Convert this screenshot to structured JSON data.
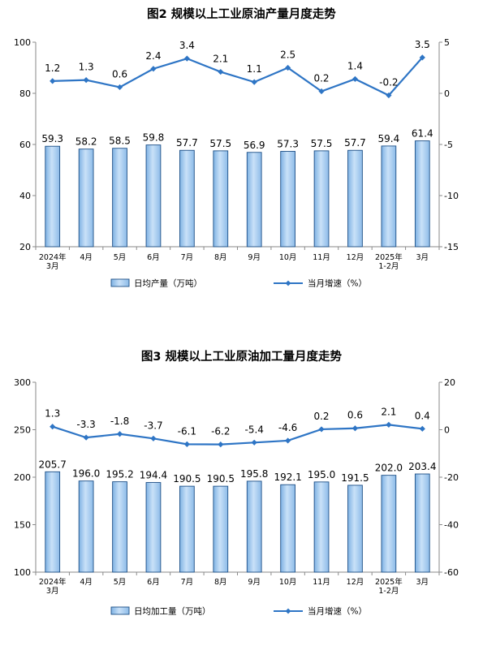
{
  "chart_data": [
    {
      "type": "bar+line",
      "title": "图2  规模以上工业原油产量月度走势",
      "categories": [
        "2024年\n3月",
        "4月",
        "5月",
        "6月",
        "7月",
        "8月",
        "9月",
        "10月",
        "11月",
        "12月",
        "2025年\n1-2月",
        "3月"
      ],
      "series": [
        {
          "name": "日均产量（万吨）",
          "type": "bar",
          "axis": "left",
          "values": [
            59.3,
            58.2,
            58.5,
            59.8,
            57.7,
            57.5,
            56.9,
            57.3,
            57.5,
            57.7,
            59.4,
            61.4
          ],
          "labels": [
            "59.3",
            "58.2",
            "58.5",
            "59.8",
            "57.7",
            "57.5",
            "56.9",
            "57.3",
            "57.5",
            "57.7",
            "59.4",
            "61.4"
          ]
        },
        {
          "name": "当月增速（%）",
          "type": "line",
          "axis": "right",
          "values": [
            1.2,
            1.3,
            0.6,
            2.4,
            3.4,
            2.1,
            1.1,
            2.5,
            0.2,
            1.4,
            -0.2,
            3.5
          ],
          "labels": [
            "1.2",
            "1.3",
            "0.6",
            "2.4",
            "3.4",
            "2.1",
            "1.1",
            "2.5",
            "0.2",
            "1.4",
            "-0.2",
            "3.5"
          ]
        }
      ],
      "y_left": {
        "min": 20,
        "max": 100,
        "ticks": [
          20,
          40,
          60,
          80,
          100
        ],
        "tick_labels": [
          "20",
          "40",
          "60",
          "80",
          "100"
        ]
      },
      "y_right": {
        "min": -15,
        "max": 5,
        "ticks": [
          -15,
          -10,
          -5,
          0,
          5
        ],
        "tick_labels": [
          "-15",
          "-10",
          "-5",
          "0",
          "5"
        ]
      },
      "grid": false,
      "legend": "bottom"
    },
    {
      "type": "bar+line",
      "title": "图3  规模以上工业原油加工量月度走势",
      "categories": [
        "2024年\n3月",
        "4月",
        "5月",
        "6月",
        "7月",
        "8月",
        "9月",
        "10月",
        "11月",
        "12月",
        "2025年\n1-2月",
        "3月"
      ],
      "series": [
        {
          "name": "日均加工量（万吨）",
          "type": "bar",
          "axis": "left",
          "values": [
            205.7,
            196.0,
            195.2,
            194.4,
            190.5,
            190.5,
            195.8,
            192.1,
            195.0,
            191.5,
            202.0,
            203.4
          ],
          "labels": [
            "205.7",
            "196.0",
            "195.2",
            "194.4",
            "190.5",
            "190.5",
            "195.8",
            "192.1",
            "195.0",
            "191.5",
            "202.0",
            "203.4"
          ]
        },
        {
          "name": "当月增速（%）",
          "type": "line",
          "axis": "right",
          "values": [
            1.3,
            -3.3,
            -1.8,
            -3.7,
            -6.1,
            -6.2,
            -5.4,
            -4.6,
            0.2,
            0.6,
            2.1,
            0.4
          ],
          "labels": [
            "1.3",
            "-3.3",
            "-1.8",
            "-3.7",
            "-6.1",
            "-6.2",
            "-5.4",
            "-4.6",
            "0.2",
            "0.6",
            "2.1",
            "0.4"
          ]
        }
      ],
      "y_left": {
        "min": 100,
        "max": 300,
        "ticks": [
          100,
          150,
          200,
          250,
          300
        ],
        "tick_labels": [
          "100",
          "150",
          "200",
          "250",
          "300"
        ]
      },
      "y_right": {
        "min": -60,
        "max": 20,
        "ticks": [
          -60,
          -40,
          -20,
          0,
          20
        ],
        "tick_labels": [
          "-60",
          "-40",
          "-20",
          "0",
          "20"
        ]
      },
      "grid": false,
      "legend": "bottom"
    }
  ],
  "colors": {
    "bar_fill": "#a6cdf1",
    "bar_stroke": "#1d4f86",
    "line": "#2e75c5",
    "axis": "#8a8a8a",
    "text": "#000000"
  }
}
